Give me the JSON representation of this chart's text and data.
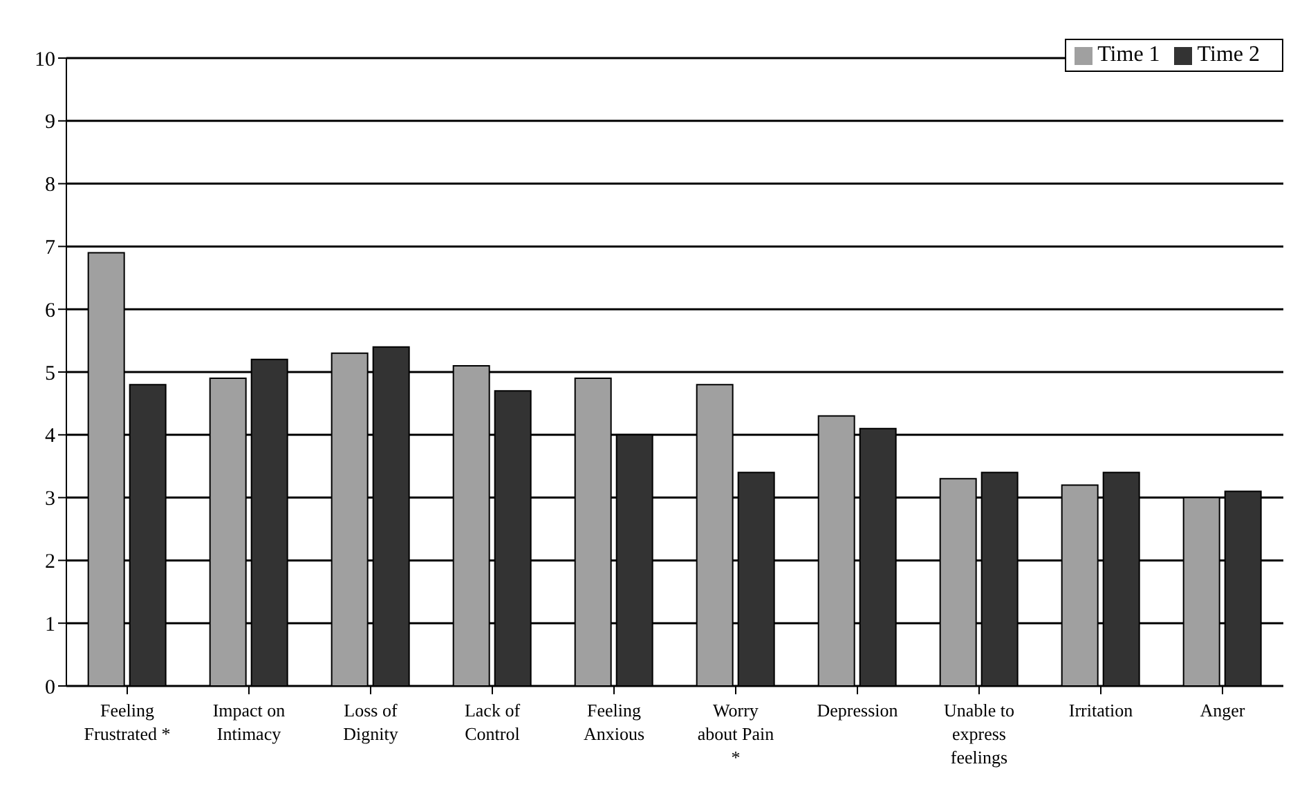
{
  "chart_data": {
    "type": "bar",
    "categories": [
      "Feeling\nFrustrated *",
      "Impact on\nIntimacy",
      "Loss of\nDignity",
      "Lack of\nControl",
      "Feeling\nAnxious",
      "Worry\nabout Pain\n*",
      "Depression",
      "Unable to\nexpress\nfeelings",
      "Irritation",
      "Anger"
    ],
    "series": [
      {
        "name": "Time 1",
        "color": "#a0a0a0",
        "values": [
          6.9,
          4.9,
          5.3,
          5.1,
          4.9,
          4.8,
          4.3,
          3.3,
          3.2,
          3.0
        ]
      },
      {
        "name": "Time 2",
        "color": "#333333",
        "values": [
          4.8,
          5.2,
          5.4,
          4.7,
          4.0,
          3.4,
          4.1,
          3.4,
          3.4,
          3.1
        ]
      }
    ],
    "ylim": [
      0,
      10
    ],
    "yticks": [
      0,
      1,
      2,
      3,
      4,
      5,
      6,
      7,
      8,
      9,
      10
    ],
    "grid": "y",
    "legend": "top right"
  }
}
